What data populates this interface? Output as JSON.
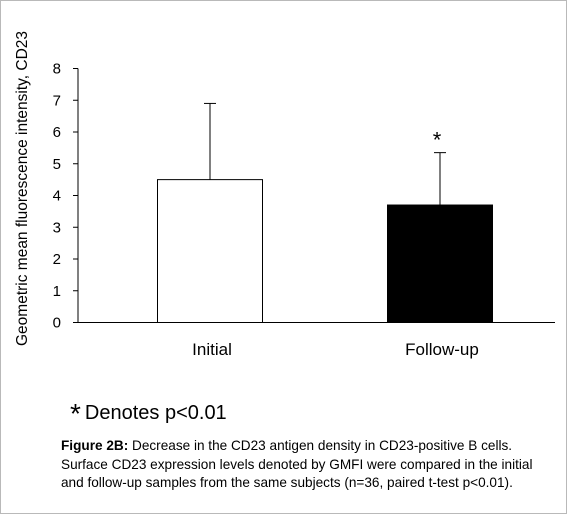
{
  "chart_data": {
    "type": "bar",
    "categories": [
      "Initial",
      "Follow-up"
    ],
    "values": [
      4.5,
      3.7
    ],
    "error_upper": [
      6.9,
      5.35
    ],
    "bar_colors": [
      "#ffffff",
      "#000000"
    ],
    "significance": [
      "",
      "*"
    ],
    "ylabel": "Geometric mean fluorescence intensity, CD23",
    "xlabel": "",
    "ylim": [
      0,
      8
    ],
    "yticks": [
      0,
      1,
      2,
      3,
      4,
      5,
      6,
      7,
      8
    ],
    "grid": false,
    "legend": "none"
  },
  "note": {
    "symbol": "*",
    "text": "Denotes p<0.01"
  },
  "caption": {
    "label": "Figure 2B:",
    "text": " Decrease in the CD23 antigen density in CD23-positive B cells. Surface CD23 expression levels denoted by GMFI were compared in the initial and follow-up samples from the same subjects (n=36, paired t-test p<0.01)."
  }
}
